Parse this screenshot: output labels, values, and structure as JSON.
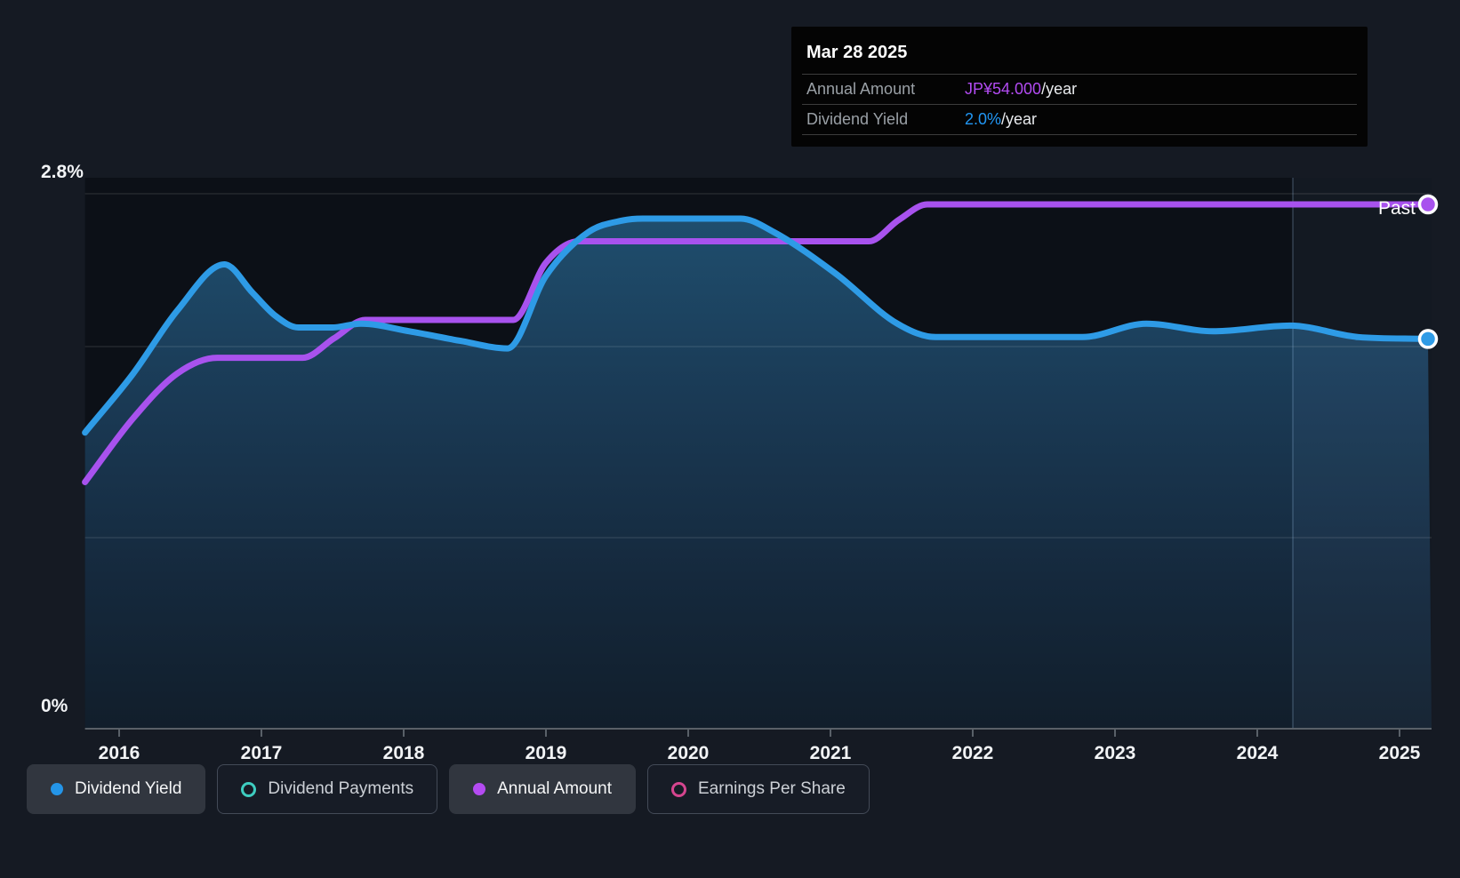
{
  "tooltip": {
    "date": "Mar 28 2025",
    "rows": [
      {
        "label": "Annual Amount",
        "value": "JP¥54.000",
        "suffix": "/year",
        "value_color": "#b24bf2"
      },
      {
        "label": "Dividend Yield",
        "value": "2.0%",
        "suffix": "/year",
        "value_color": "#2196f3"
      }
    ]
  },
  "past_label": "Past",
  "legend": {
    "position": "bottom",
    "items": [
      {
        "label": "Dividend Yield",
        "marker": "filled-dot",
        "color": "#2495e8",
        "active": true
      },
      {
        "label": "Dividend Payments",
        "marker": "outline-ring",
        "color": "#3ecdc0",
        "active": false
      },
      {
        "label": "Annual Amount",
        "marker": "filled-dot",
        "color": "#b44bf2",
        "active": true
      },
      {
        "label": "Earnings Per Share",
        "marker": "outline-ring",
        "color": "#d6458f",
        "active": false
      }
    ]
  },
  "colors": {
    "dividend_yield_line": "#2e9be6",
    "annual_amount_line": "#a852ee",
    "axis_text": "#f2f4f6",
    "grid": "rgba(255,255,255,0.10)"
  },
  "chart_data": {
    "type": "line",
    "title": "Dividend history (yield and annual amount)",
    "xlim": [
      2015.76,
      2025.23
    ],
    "ylim_percent": [
      0,
      2.88
    ],
    "x_ticks": [
      "2016",
      "2017",
      "2018",
      "2019",
      "2020",
      "2021",
      "2022",
      "2023",
      "2024",
      "2025"
    ],
    "y_axis_labels": [
      {
        "label": "2.8%",
        "value": 2.8
      },
      {
        "label": "0%",
        "value": 0
      }
    ],
    "grid_values_percent": [
      2.8,
      2.0,
      1.0
    ],
    "past_divider_year": 2024.25,
    "legend_position": "bottom",
    "series": [
      {
        "name": "Dividend Yield",
        "unit": "%",
        "axis": "percent",
        "color": "#2e9be6",
        "fill": true,
        "end_marker": true,
        "points": [
          [
            2015.76,
            1.55
          ],
          [
            2016.1,
            1.86
          ],
          [
            2016.41,
            2.19
          ],
          [
            2016.74,
            2.43
          ],
          [
            2016.94,
            2.28
          ],
          [
            2017.1,
            2.16
          ],
          [
            2017.26,
            2.1
          ],
          [
            2017.5,
            2.1
          ],
          [
            2017.7,
            2.12
          ],
          [
            2018.04,
            2.08
          ],
          [
            2018.4,
            2.03
          ],
          [
            2018.73,
            1.99
          ],
          [
            2019.0,
            2.37
          ],
          [
            2019.3,
            2.6
          ],
          [
            2019.54,
            2.66
          ],
          [
            2019.68,
            2.67
          ],
          [
            2020.37,
            2.67
          ],
          [
            2020.6,
            2.6
          ],
          [
            2021.04,
            2.38
          ],
          [
            2021.47,
            2.12
          ],
          [
            2021.74,
            2.05
          ],
          [
            2022.77,
            2.05
          ],
          [
            2023.22,
            2.12
          ],
          [
            2023.69,
            2.08
          ],
          [
            2024.23,
            2.11
          ],
          [
            2024.71,
            2.05
          ],
          [
            2025.2,
            2.04
          ]
        ]
      },
      {
        "name": "Annual Amount",
        "unit": "JP¥/year",
        "axis": "amount",
        "color": "#a852ee",
        "fill": false,
        "end_marker": true,
        "points": [
          [
            2015.76,
            25.4
          ],
          [
            2016.1,
            32.0
          ],
          [
            2016.41,
            36.6
          ],
          [
            2016.69,
            38.2
          ],
          [
            2017.29,
            38.2
          ],
          [
            2017.51,
            40.2
          ],
          [
            2017.73,
            42.1
          ],
          [
            2018.77,
            42.1
          ],
          [
            2019.0,
            48.0
          ],
          [
            2019.23,
            50.2
          ],
          [
            2021.27,
            50.2
          ],
          [
            2021.48,
            52.4
          ],
          [
            2021.68,
            54.0
          ],
          [
            2025.2,
            54.0
          ]
        ]
      },
      {
        "name": "Dividend Payments",
        "visible": false
      },
      {
        "name": "Earnings Per Share",
        "visible": false
      }
    ]
  }
}
